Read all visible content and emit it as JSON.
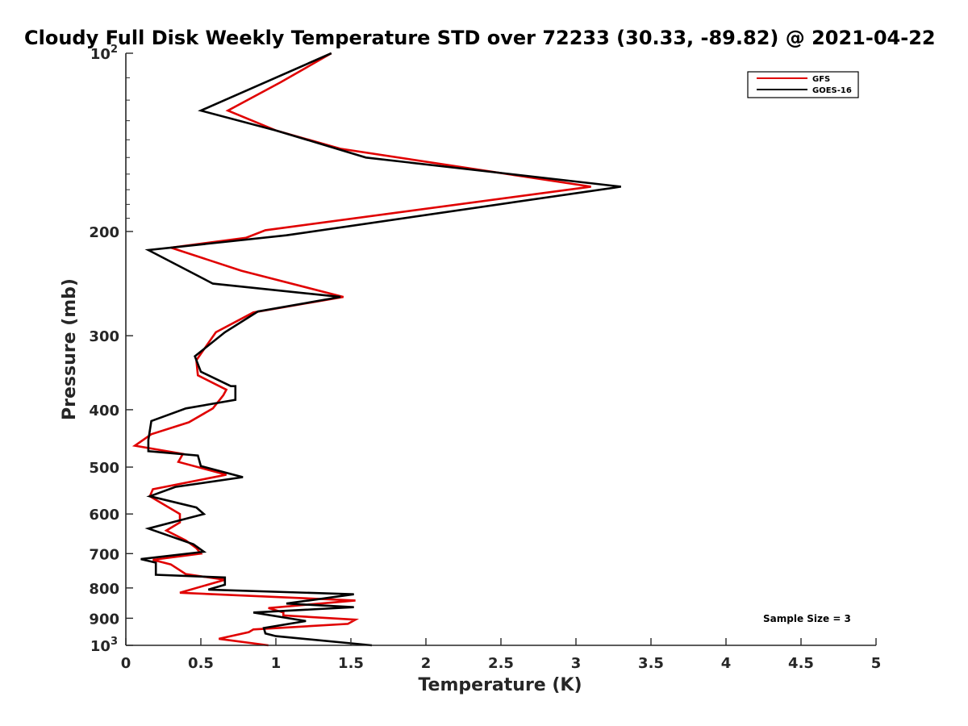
{
  "chart_data": {
    "type": "line",
    "title": "Cloudy Full Disk Weekly Temperature STD over 72233 (30.33, -89.82) @ 2021-04-22",
    "xlabel": "Temperature (K)",
    "ylabel": "Pressure (mb)",
    "xlim": [
      0,
      5
    ],
    "ylim": [
      100,
      1000
    ],
    "yscale": "log",
    "yreversed": true,
    "x_ticks": [
      "0",
      "0.5",
      "1",
      "1.5",
      "2",
      "2.5",
      "3",
      "3.5",
      "4",
      "4.5",
      "5"
    ],
    "y_ticks": [
      {
        "value": 100,
        "base": "10",
        "exp": "2"
      },
      {
        "value": 200,
        "label": "200"
      },
      {
        "value": 300,
        "label": "300"
      },
      {
        "value": 400,
        "label": "400"
      },
      {
        "value": 500,
        "label": "500"
      },
      {
        "value": 600,
        "label": "600"
      },
      {
        "value": 700,
        "label": "700"
      },
      {
        "value": 800,
        "label": "800"
      },
      {
        "value": 900,
        "label": "900"
      },
      {
        "value": 1000,
        "base": "10",
        "exp": "3"
      }
    ],
    "legend_position": "top-right",
    "annotation": "Sample Size = 3",
    "series": [
      {
        "name": "GFS",
        "color": "#e00000",
        "points": [
          [
            1.37,
            100
          ],
          [
            1.03,
            112
          ],
          [
            0.68,
            125
          ],
          [
            1.0,
            135
          ],
          [
            1.43,
            145
          ],
          [
            3.1,
            168
          ],
          [
            0.93,
            199
          ],
          [
            0.8,
            205
          ],
          [
            0.3,
            213
          ],
          [
            0.77,
            233
          ],
          [
            1.45,
            258
          ],
          [
            0.85,
            274
          ],
          [
            0.6,
            296
          ],
          [
            0.47,
            330
          ],
          [
            0.48,
            350
          ],
          [
            0.67,
            370
          ],
          [
            0.65,
            378
          ],
          [
            0.58,
            398
          ],
          [
            0.42,
            420
          ],
          [
            0.17,
            440
          ],
          [
            0.06,
            460
          ],
          [
            0.38,
            475
          ],
          [
            0.35,
            490
          ],
          [
            0.67,
            515
          ],
          [
            0.18,
            545
          ],
          [
            0.16,
            560
          ],
          [
            0.36,
            600
          ],
          [
            0.36,
            620
          ],
          [
            0.27,
            640
          ],
          [
            0.4,
            665
          ],
          [
            0.47,
            685
          ],
          [
            0.5,
            700
          ],
          [
            0.18,
            717
          ],
          [
            0.3,
            730
          ],
          [
            0.4,
            758
          ],
          [
            0.66,
            775
          ],
          [
            0.36,
            815
          ],
          [
            1.53,
            840
          ],
          [
            0.95,
            865
          ],
          [
            1.05,
            880
          ],
          [
            1.05,
            890
          ],
          [
            1.53,
            905
          ],
          [
            1.48,
            920
          ],
          [
            0.85,
            940
          ],
          [
            0.82,
            950
          ],
          [
            0.62,
            975
          ],
          [
            0.95,
            1000
          ]
        ]
      },
      {
        "name": "GOES-16",
        "color": "#000000",
        "points": [
          [
            1.37,
            100
          ],
          [
            0.5,
            125
          ],
          [
            1.0,
            135
          ],
          [
            1.6,
            150
          ],
          [
            3.3,
            168
          ],
          [
            1.07,
            203
          ],
          [
            0.15,
            215
          ],
          [
            0.58,
            245
          ],
          [
            1.43,
            258
          ],
          [
            0.88,
            273
          ],
          [
            0.66,
            296
          ],
          [
            0.46,
            325
          ],
          [
            0.5,
            345
          ],
          [
            0.7,
            365
          ],
          [
            0.73,
            365
          ],
          [
            0.73,
            385
          ],
          [
            0.4,
            398
          ],
          [
            0.17,
            418
          ],
          [
            0.15,
            450
          ],
          [
            0.15,
            470
          ],
          [
            0.48,
            478
          ],
          [
            0.5,
            498
          ],
          [
            0.78,
            520
          ],
          [
            0.33,
            540
          ],
          [
            0.16,
            560
          ],
          [
            0.47,
            585
          ],
          [
            0.52,
            600
          ],
          [
            0.15,
            635
          ],
          [
            0.45,
            675
          ],
          [
            0.52,
            695
          ],
          [
            0.1,
            715
          ],
          [
            0.2,
            725
          ],
          [
            0.2,
            760
          ],
          [
            0.66,
            768
          ],
          [
            0.66,
            790
          ],
          [
            0.55,
            805
          ],
          [
            1.52,
            820
          ],
          [
            1.07,
            850
          ],
          [
            1.52,
            862
          ],
          [
            0.85,
            880
          ],
          [
            1.2,
            910
          ],
          [
            0.92,
            935
          ],
          [
            0.93,
            955
          ],
          [
            1.0,
            965
          ],
          [
            1.64,
            1000
          ]
        ]
      }
    ]
  }
}
